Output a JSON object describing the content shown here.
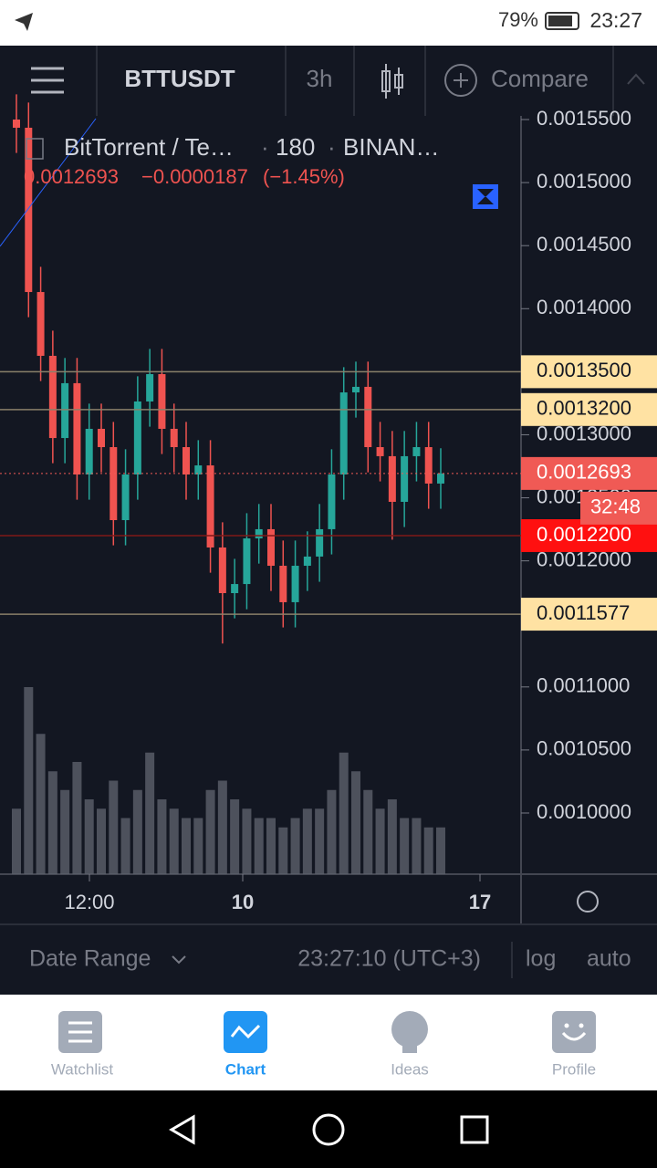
{
  "status_bar": {
    "battery": "79%",
    "time": "23:27"
  },
  "toolbar": {
    "symbol": "BTTUSDT",
    "interval": "3h",
    "compare": "Compare"
  },
  "legend": {
    "name": "BitTorrent / Te…",
    "resolution": "180",
    "exchange": "BINAN…",
    "last": "0.0012693",
    "change": "−0.0000187",
    "change_percent": "(−1.45%)"
  },
  "chart_data": {
    "type": "candlestick",
    "up_color": "#26a69a",
    "down_color": "#ef5350",
    "volume_color": "#5d606b",
    "open": [
      0.00155,
      0.0015435,
      0.0014132,
      0.0013626,
      0.0012974,
      0.0013409,
      0.0012685,
      0.0013047,
      0.0012902,
      0.0012323,
      0.0012685,
      0.0013264,
      0.0013481,
      0.0013047,
      0.0012902,
      0.0012685,
      0.0012757,
      0.0012106,
      0.0011744,
      0.0011816,
      0.0012178,
      0.0012251,
      0.0011961,
      0.0011672,
      0.0011961,
      0.0012034,
      0.0012251,
      0.0012685,
      0.0013336,
      0.001338,
      0.0012902,
      0.001283,
      0.0012468,
      0.001283,
      0.0012902,
      0.0012613
    ],
    "high": [
      0.00157,
      0.0015635,
      0.0014332,
      0.0013826,
      0.0013609,
      0.0013609,
      0.0013247,
      0.0013247,
      0.0013102,
      0.0012885,
      0.0013464,
      0.0013681,
      0.0013681,
      0.0013247,
      0.0013102,
      0.0012957,
      0.0012957,
      0.0012306,
      0.0012016,
      0.0012378,
      0.0012451,
      0.0012451,
      0.0012161,
      0.0012161,
      0.0012234,
      0.0012451,
      0.0012885,
      0.0013536,
      0.001358,
      0.001358,
      0.0013102,
      0.001303,
      0.001303,
      0.0013102,
      0.0013102,
      0.0012893
    ],
    "low": [
      0.0015235,
      0.0013932,
      0.0013426,
      0.0012774,
      0.0012774,
      0.0012485,
      0.0012485,
      0.0012702,
      0.0012123,
      0.0012123,
      0.0012485,
      0.0013064,
      0.0012847,
      0.0012702,
      0.0012485,
      0.0012485,
      0.0011906,
      0.0011344,
      0.0011544,
      0.0011616,
      0.0011978,
      0.0011761,
      0.0011472,
      0.0011472,
      0.0011761,
      0.0011834,
      0.0012051,
      0.0012485,
      0.0013136,
      0.0012702,
      0.001263,
      0.0012168,
      0.0012268,
      0.001263,
      0.0012413,
      0.0012413
    ],
    "close": [
      0.0015435,
      0.0014132,
      0.0013626,
      0.0012974,
      0.0013409,
      0.0012685,
      0.0013047,
      0.0012902,
      0.0012323,
      0.0012685,
      0.0013264,
      0.0013481,
      0.0013047,
      0.0012902,
      0.0012685,
      0.0012757,
      0.0012106,
      0.0011744,
      0.0011816,
      0.0012178,
      0.0012251,
      0.0011961,
      0.0011672,
      0.0011961,
      0.0012034,
      0.0012251,
      0.0012685,
      0.0013336,
      0.001338,
      0.0012902,
      0.001283,
      0.0012468,
      0.001283,
      0.0012902,
      0.0012613,
      0.0012693
    ],
    "volume": [
      70,
      200,
      150,
      110,
      90,
      120,
      80,
      70,
      100,
      60,
      90,
      130,
      80,
      70,
      60,
      60,
      90,
      100,
      80,
      70,
      60,
      60,
      50,
      60,
      70,
      70,
      90,
      130,
      110,
      90,
      70,
      80,
      60,
      60,
      50,
      50
    ],
    "ylim": [
      0.0009515,
      0.0015529
    ],
    "yticks": [
      {
        "value": 0.00155,
        "label": "0.0015500"
      },
      {
        "value": 0.0015,
        "label": "0.0015000"
      },
      {
        "value": 0.00145,
        "label": "0.0014500"
      },
      {
        "value": 0.0014,
        "label": "0.0014000"
      },
      {
        "value": 0.00135,
        "label": "0.0013500"
      },
      {
        "value": 0.0013,
        "label": "0.0013000"
      },
      {
        "value": 0.00125,
        "label": "0.0012500"
      },
      {
        "value": 0.0012,
        "label": "0.0012000"
      },
      {
        "value": 0.00115,
        "label": "0.0011500"
      },
      {
        "value": 0.0011,
        "label": "0.0011000"
      },
      {
        "value": 0.00105,
        "label": "0.0010500"
      },
      {
        "value": 0.001,
        "label": "0.0010000"
      }
    ],
    "levels": [
      {
        "value": 0.00135,
        "label": "0.0013500",
        "color": "#ffe2a3"
      },
      {
        "value": 0.00132,
        "label": "0.0013200",
        "color": "#ffe2a3"
      },
      {
        "value": 0.0011577,
        "label": "0.0011577",
        "color": "#ffe2a3"
      },
      {
        "value": 0.00122,
        "label": "0.0012200",
        "color": "#ff1010"
      }
    ],
    "last_price": {
      "value": 0.0012693,
      "label": "0.0012693",
      "color": "#f05a55"
    },
    "countdown": "32:48",
    "time_labels": [
      "12:00",
      "10",
      "17"
    ]
  },
  "bottom_bar": {
    "date_range": "Date Range",
    "clock": "23:27:10 (UTC+3)",
    "log": "log",
    "auto": "auto"
  },
  "tabs": [
    "Watchlist",
    "Chart",
    "Ideas",
    "Profile"
  ]
}
